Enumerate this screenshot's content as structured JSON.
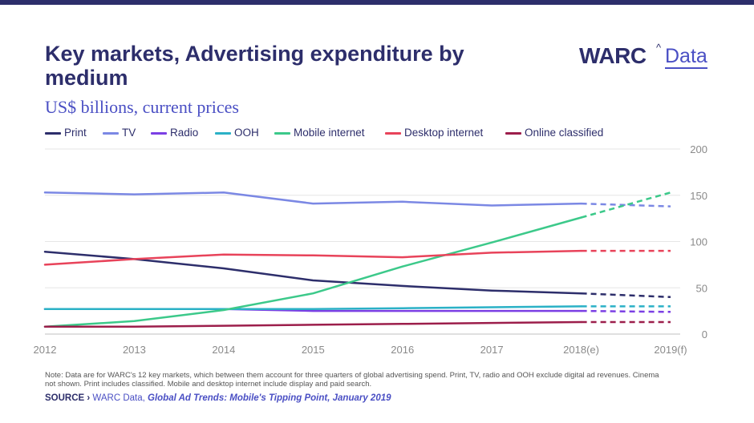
{
  "header": {
    "title": "Key markets, Advertising expenditure by medium",
    "subtitle": "US$ billions, current prices"
  },
  "logo": {
    "brand": "WARC",
    "caret": "^",
    "product": "Data"
  },
  "chart_data": {
    "type": "line",
    "title": "Key markets, Advertising expenditure by medium",
    "subtitle": "US$ billions, current prices",
    "categories": [
      "2012",
      "2013",
      "2014",
      "2015",
      "2016",
      "2017",
      "2018(e)",
      "2019(f)"
    ],
    "forecast_from_index": 6,
    "ylim": [
      0,
      200
    ],
    "yticks": [
      0,
      50,
      100,
      150,
      200
    ],
    "y_axis_side": "right",
    "grid": "horizontal",
    "legend_position": "top",
    "series": [
      {
        "name": "Print",
        "color": "#2d2e6b",
        "values": [
          89,
          81,
          71,
          58,
          52,
          47,
          44,
          40
        ]
      },
      {
        "name": "TV",
        "color": "#7b88e4",
        "values": [
          153,
          151,
          153,
          141,
          143,
          139,
          141,
          138
        ]
      },
      {
        "name": "Radio",
        "color": "#7b3fe4",
        "values": [
          27,
          27,
          27,
          25,
          25,
          25,
          25,
          24
        ]
      },
      {
        "name": "OOH",
        "color": "#2bb1c6",
        "values": [
          27,
          27,
          27,
          27,
          28,
          29,
          30,
          30
        ]
      },
      {
        "name": "Mobile internet",
        "color": "#3cc98a",
        "values": [
          8,
          14,
          26,
          44,
          73,
          99,
          126,
          153
        ]
      },
      {
        "name": "Desktop internet",
        "color": "#e8435a",
        "values": [
          75,
          81,
          86,
          85,
          83,
          88,
          90,
          90
        ]
      },
      {
        "name": "Online classified",
        "color": "#9c1e4b",
        "values": [
          8,
          8,
          9,
          10,
          11,
          12,
          13,
          13
        ]
      }
    ]
  },
  "footer": {
    "note": "Note: Data are for WARC's 12 key markets, which between them account for three quarters of global advertising spend. Print, TV, radio and OOH exclude digital ad revenues. Cinema not shown. Print includes classified. Mobile and desktop internet include display and paid search.",
    "source_label": "SOURCE › ",
    "source_org": "WARC Data, ",
    "source_title": "Global Ad Trends: Mobile's Tipping Point, January 2019"
  }
}
